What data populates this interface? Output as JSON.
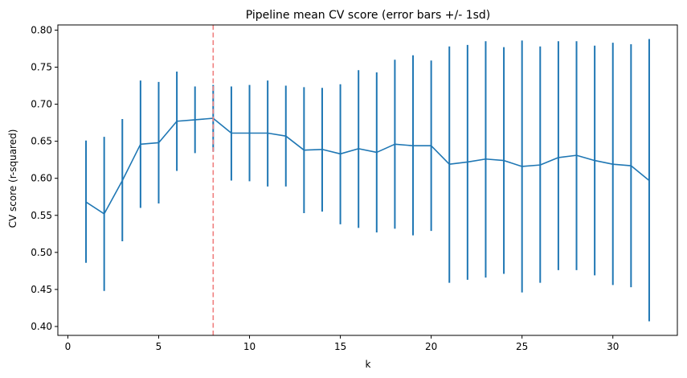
{
  "chart_data": {
    "type": "line",
    "title": "Pipeline mean CV score (error bars +/- 1sd)",
    "xlabel": "k",
    "ylabel": "CV score (r-squared)",
    "xlim": [
      -0.55,
      33.55
    ],
    "ylim": [
      0.388,
      0.807
    ],
    "xticks": [
      0,
      5,
      10,
      15,
      20,
      25,
      30
    ],
    "yticks": [
      0.4,
      0.45,
      0.5,
      0.55,
      0.6,
      0.65,
      0.7,
      0.75,
      0.8
    ],
    "xtick_labels": [
      "0",
      "5",
      "10",
      "15",
      "20",
      "25",
      "30"
    ],
    "ytick_labels": [
      "0.40",
      "0.45",
      "0.50",
      "0.55",
      "0.60",
      "0.65",
      "0.70",
      "0.75",
      "0.80"
    ],
    "grid": false,
    "series_color": "#1f77b4",
    "reference_line": {
      "x": 8,
      "color": "#ef7f7f",
      "style": "dashed"
    },
    "series": [
      {
        "x": [
          1,
          2,
          3,
          4,
          5,
          6,
          7,
          8,
          9,
          10,
          11,
          12,
          13,
          14,
          15,
          16,
          17,
          18,
          19,
          20,
          21,
          22,
          23,
          24,
          25,
          26,
          27,
          28,
          29,
          30,
          31,
          32
        ],
        "y": [
          0.568,
          0.552,
          0.597,
          0.646,
          0.648,
          0.677,
          0.679,
          0.681,
          0.661,
          0.661,
          0.661,
          0.657,
          0.638,
          0.639,
          0.633,
          0.64,
          0.635,
          0.646,
          0.644,
          0.644,
          0.619,
          0.622,
          0.626,
          0.624,
          0.616,
          0.618,
          0.628,
          0.631,
          0.624,
          0.619,
          0.617,
          0.597
        ],
        "err_low": [
          0.486,
          0.448,
          0.515,
          0.56,
          0.566,
          0.61,
          0.634,
          0.636,
          0.597,
          0.596,
          0.589,
          0.589,
          0.553,
          0.555,
          0.538,
          0.533,
          0.527,
          0.532,
          0.523,
          0.529,
          0.459,
          0.463,
          0.466,
          0.471,
          0.446,
          0.459,
          0.476,
          0.476,
          0.469,
          0.456,
          0.453,
          0.407
        ],
        "err_high": [
          0.651,
          0.656,
          0.68,
          0.732,
          0.73,
          0.744,
          0.724,
          0.726,
          0.724,
          0.726,
          0.732,
          0.725,
          0.723,
          0.722,
          0.727,
          0.746,
          0.743,
          0.76,
          0.766,
          0.759,
          0.778,
          0.78,
          0.785,
          0.777,
          0.786,
          0.778,
          0.785,
          0.785,
          0.779,
          0.783,
          0.781,
          0.788
        ]
      }
    ]
  }
}
